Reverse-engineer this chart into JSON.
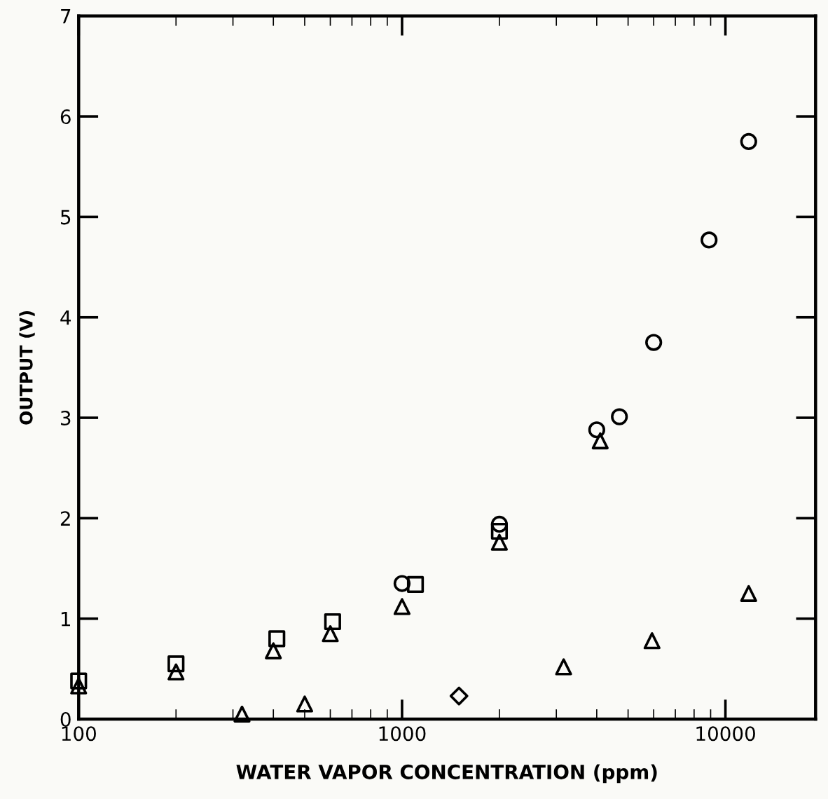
{
  "chart_data": {
    "type": "scatter",
    "xlabel": "WATER VAPOR CONCENTRATION (ppm)",
    "ylabel": "OUTPUT (V)",
    "log": "x",
    "xlim": [
      100,
      19000
    ],
    "xticks": [
      100,
      1000,
      10000
    ],
    "ylim": [
      0,
      7
    ],
    "yticks": [
      0,
      1,
      2,
      3,
      4,
      5,
      6,
      7
    ],
    "grid": false,
    "legend": false,
    "series": [
      {
        "marker": "triangle",
        "color": "#000000",
        "x": [
          100,
          200,
          400,
          600,
          1000,
          2000,
          4100
        ],
        "values": [
          0.33,
          0.47,
          0.68,
          0.85,
          1.12,
          1.76,
          2.77
        ]
      },
      {
        "marker": "square",
        "color": "#000000",
        "x": [
          100,
          200,
          410,
          610,
          1100,
          2000
        ],
        "values": [
          0.38,
          0.55,
          0.8,
          0.97,
          1.34,
          1.87
        ]
      },
      {
        "marker": "circle",
        "color": "#000000",
        "x": [
          1000,
          2000,
          4000,
          4700
        ],
        "values": [
          1.35,
          1.94,
          2.88,
          3.01
        ]
      },
      {
        "marker": "circle",
        "color": "#000000",
        "x": [
          6000,
          8900,
          11800
        ],
        "values": [
          3.75,
          4.77,
          5.75
        ]
      },
      {
        "marker": "triangle",
        "color": "#000000",
        "x": [
          320,
          500,
          3160,
          5930,
          11800
        ],
        "values": [
          0.05,
          0.15,
          0.52,
          0.78,
          1.25
        ]
      },
      {
        "marker": "diamond",
        "color": "#000000",
        "x": [
          1500
        ],
        "values": [
          0.23
        ]
      }
    ]
  }
}
